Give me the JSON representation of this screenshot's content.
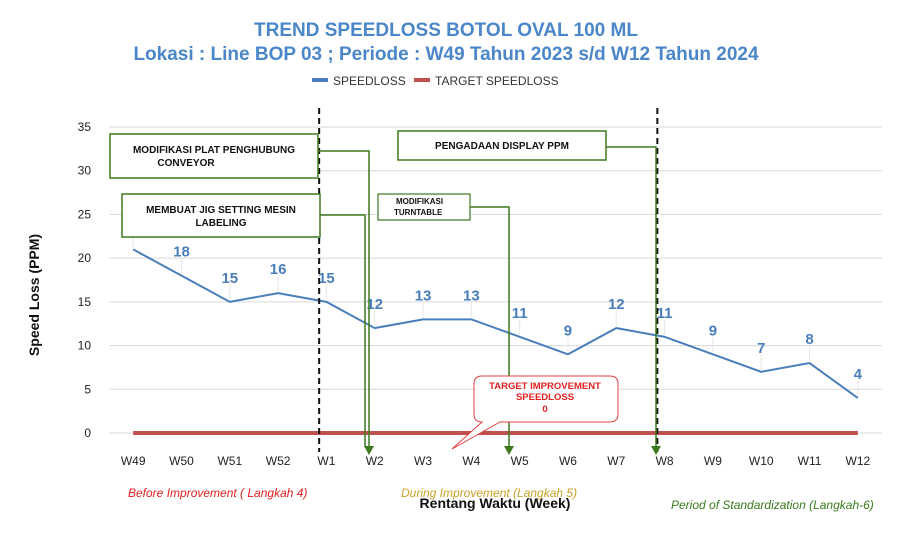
{
  "title_line1": "TREND SPEEDLOSS BOTOL OVAL 100 ML",
  "title_line2": "Lokasi : Line BOP 03 ; Periode : W49 Tahun 2023 s/d W12 Tahun 2024",
  "chart_data": {
    "type": "line",
    "categories": [
      "W49",
      "W50",
      "W51",
      "W52",
      "W1",
      "W2",
      "W3",
      "W4",
      "W5",
      "W6",
      "W7",
      "W8",
      "W9",
      "W10",
      "W11",
      "W12"
    ],
    "series": [
      {
        "name": "SPEEDLOSS",
        "values": [
          21,
          18,
          15,
          16,
          15,
          12,
          13,
          13,
          11,
          9,
          12,
          11,
          9,
          7,
          8,
          4
        ],
        "color": "#4a7ebb"
      },
      {
        "name": "TARGET SPEEDLOSS",
        "values": [
          0,
          0,
          0,
          0,
          0,
          0,
          0,
          0,
          0,
          0,
          0,
          0,
          0,
          0,
          0,
          0
        ],
        "color": "#c0504d"
      }
    ],
    "xlabel": "Rentang Waktu (Week)",
    "ylabel": "Speed Loss (PPM)",
    "ylim": [
      0,
      35
    ],
    "yticks": [
      0,
      5,
      10,
      15,
      20,
      25,
      30,
      35
    ],
    "grid": true,
    "legend": "top"
  },
  "annotations": [
    {
      "lines": [
        "MODIFIKASI PLAT PENGHUBUNG",
        "CONVEYOR"
      ],
      "target_category": "W2"
    },
    {
      "lines": [
        "MEMBUAT JIG SETTING MESIN",
        "LABELING"
      ],
      "target_category": "W2"
    },
    {
      "lines": [
        "MODIFIKASI",
        "TURNTABLE"
      ],
      "target_category": "W5"
    },
    {
      "lines": [
        "PENGADAAN DISPLAY PPM"
      ],
      "target_category": "W8"
    }
  ],
  "target_callout": [
    "TARGET IMPROVEMENT",
    "SPEEDLOSS",
    "0"
  ],
  "phase_dividers": [
    "W1",
    "W8"
  ],
  "phases": [
    {
      "label": "Before Improvement ( Langkah 4)",
      "color": "#e02020"
    },
    {
      "label": "During Improvement (Langkah 5)",
      "color": "#c9a227"
    },
    {
      "label": "Period of Standardization (Langkah-6)",
      "color": "#3a7a1e"
    }
  ]
}
